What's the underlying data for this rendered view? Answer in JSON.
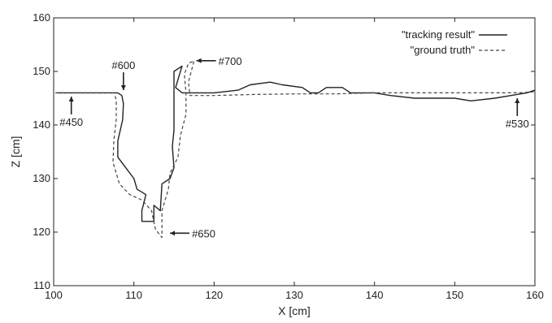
{
  "chart_data": {
    "type": "line",
    "title": "",
    "xlabel": "X [cm]",
    "ylabel": "Z [cm]",
    "xlim": [
      100,
      160
    ],
    "ylim": [
      110,
      160
    ],
    "xticks": [
      "100",
      "110",
      "120",
      "130",
      "140",
      "150",
      "160"
    ],
    "yticks": [
      "110",
      "120",
      "130",
      "140",
      "150",
      "160"
    ],
    "grid": false,
    "legend_position": "top-right",
    "series": [
      {
        "name": "\"tracking result\"",
        "style": "solid",
        "points": [
          [
            100.4,
            146.0
          ],
          [
            103.0,
            146.0
          ],
          [
            106.0,
            146.0
          ],
          [
            108.0,
            146.0
          ],
          [
            108.5,
            145.5
          ],
          [
            108.7,
            144.0
          ],
          [
            108.6,
            141.0
          ],
          [
            108.3,
            139.0
          ],
          [
            108.0,
            137.0
          ],
          [
            108.0,
            134.0
          ],
          [
            109.0,
            132.0
          ],
          [
            110.0,
            130.0
          ],
          [
            110.4,
            128.0
          ],
          [
            111.5,
            127.0
          ],
          [
            111.0,
            124.0
          ],
          [
            111.0,
            122.0
          ],
          [
            112.5,
            122.0
          ],
          [
            112.5,
            125.0
          ],
          [
            113.3,
            124.0
          ],
          [
            113.5,
            129.0
          ],
          [
            114.5,
            130.0
          ],
          [
            115.0,
            132.0
          ],
          [
            114.8,
            136.0
          ],
          [
            115.0,
            139.0
          ],
          [
            115.0,
            142.0
          ],
          [
            115.0,
            145.0
          ],
          [
            115.0,
            150.0
          ],
          [
            116.0,
            151.0
          ],
          [
            115.2,
            147.0
          ],
          [
            116.0,
            146.0
          ],
          [
            120.0,
            146.0
          ],
          [
            123.0,
            146.5
          ],
          [
            124.5,
            147.5
          ],
          [
            127.0,
            148.0
          ],
          [
            128.5,
            147.5
          ],
          [
            131.0,
            147.0
          ],
          [
            132.0,
            146.0
          ],
          [
            133.0,
            146.0
          ],
          [
            134.0,
            147.0
          ],
          [
            136.0,
            147.0
          ],
          [
            137.0,
            146.0
          ],
          [
            140.0,
            146.0
          ],
          [
            142.0,
            145.5
          ],
          [
            145.0,
            145.0
          ],
          [
            148.0,
            145.0
          ],
          [
            150.0,
            145.0
          ],
          [
            152.0,
            144.5
          ],
          [
            155.0,
            145.0
          ],
          [
            157.0,
            145.5
          ],
          [
            159.0,
            146.0
          ],
          [
            160.0,
            146.5
          ]
        ]
      },
      {
        "name": "\"ground truth\"",
        "style": "dashed",
        "points": [
          [
            100.2,
            146.0
          ],
          [
            103.0,
            146.0
          ],
          [
            106.0,
            146.0
          ],
          [
            107.6,
            146.0
          ],
          [
            107.8,
            144.5
          ],
          [
            107.8,
            141.0
          ],
          [
            107.5,
            137.0
          ],
          [
            107.4,
            133.0
          ],
          [
            108.2,
            129.0
          ],
          [
            109.5,
            127.0
          ],
          [
            111.0,
            126.0
          ],
          [
            112.2,
            124.0
          ],
          [
            112.7,
            120.5
          ],
          [
            113.5,
            119.0
          ],
          [
            113.5,
            124.0
          ],
          [
            114.3,
            128.0
          ],
          [
            114.5,
            131.0
          ],
          [
            115.5,
            134.0
          ],
          [
            115.8,
            138.0
          ],
          [
            116.5,
            142.0
          ],
          [
            116.5,
            146.0
          ],
          [
            116.3,
            149.5
          ],
          [
            116.8,
            151.5
          ],
          [
            117.5,
            152.0
          ],
          [
            116.8,
            148.0
          ],
          [
            117.0,
            145.5
          ],
          [
            120.0,
            145.5
          ],
          [
            125.0,
            145.7
          ],
          [
            130.0,
            145.8
          ],
          [
            135.0,
            145.8
          ],
          [
            140.0,
            146.0
          ],
          [
            145.0,
            146.0
          ],
          [
            150.0,
            146.0
          ],
          [
            155.0,
            146.0
          ],
          [
            158.0,
            146.0
          ],
          [
            160.0,
            146.2
          ]
        ]
      }
    ],
    "annotations": [
      {
        "text": "#450",
        "arrow": "up",
        "target": [
          102.2,
          145.3
        ]
      },
      {
        "text": "#600",
        "arrow": "down",
        "target": [
          108.7,
          146.5
        ]
      },
      {
        "text": "#700",
        "arrow": "left",
        "target": [
          117.8,
          152.0
        ]
      },
      {
        "text": "#650",
        "arrow": "left",
        "target": [
          114.5,
          119.8
        ]
      },
      {
        "text": "#530",
        "arrow": "up",
        "target": [
          157.8,
          145.0
        ]
      }
    ]
  }
}
